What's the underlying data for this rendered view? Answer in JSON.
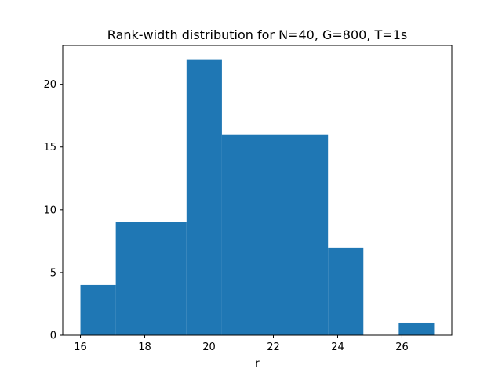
{
  "chart_data": {
    "type": "bar",
    "title": "Rank-width distribution for N=40, G=800, T=1s",
    "xlabel": "r",
    "ylabel": "",
    "xlim": [
      15.45,
      27.55
    ],
    "ylim": [
      0,
      23.1
    ],
    "xticks": [
      16,
      18,
      20,
      22,
      24,
      26
    ],
    "yticks": [
      0,
      5,
      10,
      15,
      20
    ],
    "bin_edges": [
      16.0,
      17.1,
      18.2,
      19.3,
      20.4,
      21.5,
      22.6,
      23.7,
      24.8,
      25.9,
      27.0
    ],
    "counts": [
      4,
      9,
      9,
      22,
      16,
      16,
      16,
      7,
      0,
      1
    ],
    "bar_color": "#1f77b4",
    "grid": false
  }
}
